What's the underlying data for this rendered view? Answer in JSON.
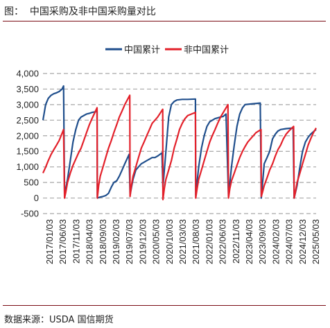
{
  "figure_title": "图：  中国采购及非中国采购量对比",
  "source": "数据来源：USDA 国信期货",
  "colors": {
    "china": "#1f4e8c",
    "non_china": "#e3202a",
    "grid": "#a6a6a6",
    "accent": "#7b0b14"
  },
  "chart_data": {
    "type": "line",
    "title": "",
    "xlabel": "",
    "ylabel": "",
    "ylim": [
      -500,
      4000
    ],
    "yticks": [
      -500,
      0,
      500,
      1000,
      1500,
      2000,
      2500,
      3000,
      3500,
      4000
    ],
    "ytick_labels": [
      "-500",
      "0",
      "500",
      "1,000",
      "1,500",
      "2,000",
      "2,500",
      "3,000",
      "3,500",
      "4,000"
    ],
    "xlim": [
      "2017-01-03",
      "2025-05-03"
    ],
    "xtick_labels": [
      "2017/01/03",
      "2017/06/03",
      "2017/11/03",
      "2018/04/03",
      "2018/09/03",
      "2019/02/03",
      "2019/07/03",
      "2019/12/03",
      "2020/05/03",
      "2020/10/03",
      "2021/03/03",
      "2021/08/03",
      "2022/01/03",
      "2022/06/03",
      "2022/11/03",
      "2023/04/03",
      "2023/09/03",
      "2024/02/03",
      "2024/07/03",
      "2024/12/03",
      "2025/05/03"
    ],
    "grid": "horizontal-dashed",
    "legend_position": "top-center",
    "series": [
      {
        "name": "中国累计",
        "color": "#1f4e8c",
        "points": [
          [
            "2017-01-03",
            2500
          ],
          [
            "2017-02-01",
            3000
          ],
          [
            "2017-03-03",
            3200
          ],
          [
            "2017-04-03",
            3300
          ],
          [
            "2017-05-03",
            3350
          ],
          [
            "2017-06-03",
            3380
          ],
          [
            "2017-07-03",
            3420
          ],
          [
            "2017-08-03",
            3500
          ],
          [
            "2017-08-20",
            3600
          ],
          [
            "2017-08-31",
            100
          ],
          [
            "2017-10-03",
            600
          ],
          [
            "2017-11-03",
            1200
          ],
          [
            "2017-12-03",
            1800
          ],
          [
            "2018-01-03",
            2200
          ],
          [
            "2018-02-03",
            2500
          ],
          [
            "2018-03-03",
            2600
          ],
          [
            "2018-04-03",
            2650
          ],
          [
            "2018-05-03",
            2700
          ],
          [
            "2018-06-03",
            2720
          ],
          [
            "2018-07-03",
            2750
          ],
          [
            "2018-08-28",
            2780
          ],
          [
            "2018-08-31",
            0
          ],
          [
            "2018-10-03",
            30
          ],
          [
            "2018-11-03",
            50
          ],
          [
            "2018-12-03",
            80
          ],
          [
            "2019-01-03",
            150
          ],
          [
            "2019-02-03",
            350
          ],
          [
            "2019-03-03",
            500
          ],
          [
            "2019-04-03",
            550
          ],
          [
            "2019-05-03",
            700
          ],
          [
            "2019-06-03",
            900
          ],
          [
            "2019-07-03",
            1100
          ],
          [
            "2019-08-20",
            1400
          ],
          [
            "2019-08-31",
            100
          ],
          [
            "2019-10-03",
            600
          ],
          [
            "2019-11-03",
            900
          ],
          [
            "2019-12-03",
            1000
          ],
          [
            "2020-01-03",
            1100
          ],
          [
            "2020-02-03",
            1150
          ],
          [
            "2020-03-03",
            1200
          ],
          [
            "2020-04-03",
            1250
          ],
          [
            "2020-05-03",
            1300
          ],
          [
            "2020-06-03",
            1300
          ],
          [
            "2020-07-03",
            1350
          ],
          [
            "2020-08-20",
            1450
          ],
          [
            "2020-08-31",
            350
          ],
          [
            "2020-10-03",
            1500
          ],
          [
            "2020-11-03",
            2600
          ],
          [
            "2020-12-03",
            3000
          ],
          [
            "2021-01-03",
            3100
          ],
          [
            "2021-02-03",
            3150
          ],
          [
            "2021-04-03",
            3170
          ],
          [
            "2021-06-03",
            3170
          ],
          [
            "2021-08-28",
            3180
          ],
          [
            "2021-08-31",
            100
          ],
          [
            "2021-10-03",
            1000
          ],
          [
            "2021-11-03",
            1600
          ],
          [
            "2021-12-03",
            2000
          ],
          [
            "2022-01-03",
            2300
          ],
          [
            "2022-02-03",
            2450
          ],
          [
            "2022-04-03",
            2550
          ],
          [
            "2022-06-03",
            2600
          ],
          [
            "2022-07-03",
            2620
          ],
          [
            "2022-08-03",
            2700
          ],
          [
            "2022-08-31",
            50
          ],
          [
            "2022-10-03",
            1000
          ],
          [
            "2022-11-03",
            1700
          ],
          [
            "2022-12-03",
            2300
          ],
          [
            "2023-01-03",
            2700
          ],
          [
            "2023-02-03",
            2900
          ],
          [
            "2023-03-03",
            3000
          ],
          [
            "2023-05-03",
            3020
          ],
          [
            "2023-08-20",
            3050
          ],
          [
            "2023-08-31",
            0
          ],
          [
            "2023-10-03",
            1100
          ],
          [
            "2023-11-03",
            1300
          ],
          [
            "2023-12-03",
            1500
          ],
          [
            "2024-01-03",
            1900
          ],
          [
            "2024-02-03",
            2050
          ],
          [
            "2024-03-03",
            2150
          ],
          [
            "2024-04-03",
            2200
          ],
          [
            "2024-06-03",
            2230
          ],
          [
            "2024-08-20",
            2250
          ],
          [
            "2024-08-31",
            0
          ],
          [
            "2024-10-03",
            400
          ],
          [
            "2024-11-03",
            1000
          ],
          [
            "2024-12-03",
            1500
          ],
          [
            "2025-01-03",
            1800
          ],
          [
            "2025-02-03",
            1950
          ],
          [
            "2025-03-03",
            2050
          ],
          [
            "2025-04-03",
            2130
          ],
          [
            "2025-05-03",
            2200
          ]
        ]
      },
      {
        "name": "非中国累计",
        "color": "#e3202a",
        "points": [
          [
            "2017-01-03",
            800
          ],
          [
            "2017-02-03",
            1000
          ],
          [
            "2017-03-03",
            1200
          ],
          [
            "2017-04-03",
            1400
          ],
          [
            "2017-05-03",
            1550
          ],
          [
            "2017-06-03",
            1700
          ],
          [
            "2017-07-03",
            1850
          ],
          [
            "2017-08-20",
            2200
          ],
          [
            "2017-08-31",
            0
          ],
          [
            "2017-09-15",
            200
          ],
          [
            "2017-10-03",
            500
          ],
          [
            "2017-11-03",
            800
          ],
          [
            "2017-12-03",
            1050
          ],
          [
            "2018-01-03",
            1250
          ],
          [
            "2018-02-03",
            1450
          ],
          [
            "2018-03-03",
            1600
          ],
          [
            "2018-04-03",
            1850
          ],
          [
            "2018-05-03",
            2100
          ],
          [
            "2018-06-03",
            2350
          ],
          [
            "2018-07-03",
            2550
          ],
          [
            "2018-08-28",
            2900
          ],
          [
            "2018-08-31",
            0
          ],
          [
            "2018-09-15",
            400
          ],
          [
            "2018-10-03",
            700
          ],
          [
            "2018-11-03",
            1000
          ],
          [
            "2018-12-03",
            1300
          ],
          [
            "2019-01-03",
            1600
          ],
          [
            "2019-02-03",
            1850
          ],
          [
            "2019-03-03",
            2100
          ],
          [
            "2019-04-03",
            2350
          ],
          [
            "2019-05-03",
            2600
          ],
          [
            "2019-06-03",
            2800
          ],
          [
            "2019-07-03",
            3000
          ],
          [
            "2019-08-28",
            3300
          ],
          [
            "2019-08-31",
            50
          ],
          [
            "2019-09-15",
            400
          ],
          [
            "2019-10-03",
            700
          ],
          [
            "2019-11-03",
            1000
          ],
          [
            "2019-12-03",
            1300
          ],
          [
            "2020-01-03",
            1600
          ],
          [
            "2020-02-03",
            1800
          ],
          [
            "2020-03-03",
            2000
          ],
          [
            "2020-04-03",
            2200
          ],
          [
            "2020-05-03",
            2400
          ],
          [
            "2020-06-03",
            2500
          ],
          [
            "2020-07-03",
            2600
          ],
          [
            "2020-08-28",
            2850
          ],
          [
            "2020-08-31",
            -50
          ],
          [
            "2020-09-15",
            300
          ],
          [
            "2020-10-03",
            600
          ],
          [
            "2020-11-03",
            900
          ],
          [
            "2020-12-03",
            1200
          ],
          [
            "2021-01-03",
            1600
          ],
          [
            "2021-02-03",
            1900
          ],
          [
            "2021-03-03",
            2200
          ],
          [
            "2021-04-03",
            2400
          ],
          [
            "2021-05-03",
            2550
          ],
          [
            "2021-06-03",
            2650
          ],
          [
            "2021-08-28",
            2750
          ],
          [
            "2021-08-31",
            0
          ],
          [
            "2021-09-15",
            300
          ],
          [
            "2021-10-03",
            600
          ],
          [
            "2021-11-03",
            900
          ],
          [
            "2021-12-03",
            1200
          ],
          [
            "2022-01-03",
            1500
          ],
          [
            "2022-02-03",
            1800
          ],
          [
            "2022-03-03",
            2000
          ],
          [
            "2022-04-03",
            2200
          ],
          [
            "2022-05-03",
            2400
          ],
          [
            "2022-06-03",
            2600
          ],
          [
            "2022-08-25",
            3000
          ],
          [
            "2022-08-31",
            0
          ],
          [
            "2022-09-15",
            300
          ],
          [
            "2022-10-03",
            550
          ],
          [
            "2022-11-03",
            800
          ],
          [
            "2022-12-03",
            1050
          ],
          [
            "2023-01-03",
            1300
          ],
          [
            "2023-02-03",
            1500
          ],
          [
            "2023-03-03",
            1650
          ],
          [
            "2023-04-03",
            1800
          ],
          [
            "2023-05-03",
            1900
          ],
          [
            "2023-06-03",
            2000
          ],
          [
            "2023-07-03",
            2100
          ],
          [
            "2023-08-28",
            2200
          ],
          [
            "2023-08-31",
            50
          ],
          [
            "2023-09-15",
            200
          ],
          [
            "2023-10-03",
            400
          ],
          [
            "2023-11-03",
            650
          ],
          [
            "2023-12-03",
            900
          ],
          [
            "2024-01-03",
            1100
          ],
          [
            "2024-02-03",
            1350
          ],
          [
            "2024-03-03",
            1550
          ],
          [
            "2024-04-03",
            1700
          ],
          [
            "2024-05-03",
            1900
          ],
          [
            "2024-06-03",
            2050
          ],
          [
            "2024-07-03",
            2150
          ],
          [
            "2024-08-25",
            2300
          ],
          [
            "2024-08-31",
            0
          ],
          [
            "2024-09-15",
            200
          ],
          [
            "2024-10-03",
            500
          ],
          [
            "2024-11-03",
            800
          ],
          [
            "2024-12-03",
            1100
          ],
          [
            "2025-01-03",
            1400
          ],
          [
            "2025-02-03",
            1700
          ],
          [
            "2025-03-03",
            1900
          ],
          [
            "2025-04-03",
            2100
          ],
          [
            "2025-05-03",
            2250
          ]
        ]
      }
    ]
  }
}
